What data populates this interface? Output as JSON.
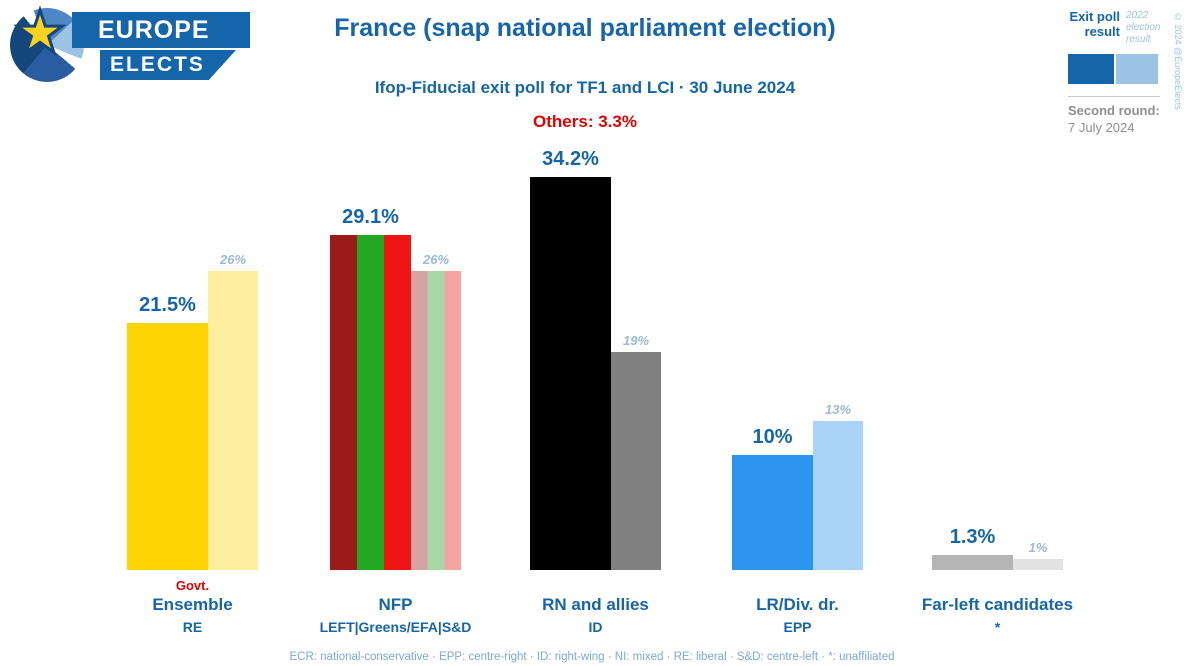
{
  "logo": {
    "line1": "EUROPE",
    "line2": "ELECTS",
    "star": "★"
  },
  "header": {
    "title": "France (snap national parliament election)",
    "subtitle": "Ifop-Fiducial exit poll for TF1 and LCI · 30 June 2024",
    "others_label": "Others: 3.3%"
  },
  "legend": {
    "exit_poll_label": "Exit poll result",
    "prev_label": "2022 election result",
    "exit_color": "#1565ab",
    "prev_color": "#9cc3e4",
    "second_round_label": "Second round:",
    "second_round_date": "7 July 2024",
    "copyright": "© 2024 @EuropeElects"
  },
  "footer": {
    "text": "ECR: national-conservative · EPP: centre-right · ID: right-wing · NI: mixed · RE: liberal · S&D: centre-left · *: unaffiliated"
  },
  "chart_data": {
    "type": "bar",
    "title": "France (snap national parliament election)",
    "subtitle": "Ifop-Fiducial exit poll for TF1 and LCI · 30 June 2024",
    "others_pct": 3.3,
    "unit": "%",
    "ylim": [
      0,
      40
    ],
    "grid": false,
    "legend_position": "top-right",
    "categories": [
      "Ensemble",
      "NFP",
      "RN and allies",
      "LR/Div. dr.",
      "Far-left candidates"
    ],
    "groups": [
      "RE",
      "LEFT|Greens/EFA|S&D",
      "ID",
      "EPP",
      "*"
    ],
    "series": [
      {
        "name": "Exit poll result",
        "values": [
          21.5,
          29.1,
          34.2,
          10,
          1.3
        ]
      },
      {
        "name": "2022 election result",
        "values": [
          26,
          26,
          19,
          13,
          1
        ]
      }
    ],
    "bars": [
      {
        "party": "Ensemble",
        "group": "RE",
        "tag": "Govt.",
        "value": 21.5,
        "value_label": "21.5%",
        "prev": 26,
        "prev_label": "26%",
        "colors": [
          "#ffd500"
        ],
        "prev_colors": [
          "#fcee9e"
        ]
      },
      {
        "party": "NFP",
        "group": "LEFT|Greens/EFA|S&D",
        "tag": "",
        "value": 29.1,
        "value_label": "29.1%",
        "prev": 26,
        "prev_label": "26%",
        "colors": [
          "#9b1b1b",
          "#22a822",
          "#f01414"
        ],
        "prev_colors": [
          "#d6a3a3",
          "#a6d8a6",
          "#f5a3a3"
        ]
      },
      {
        "party": "RN and allies",
        "group": "ID",
        "tag": "",
        "value": 34.2,
        "value_label": "34.2%",
        "prev": 19,
        "prev_label": "19%",
        "colors": [
          "#000000"
        ],
        "prev_colors": [
          "#808080"
        ]
      },
      {
        "party": "LR/Div. dr.",
        "group": "EPP",
        "tag": "",
        "value": 10,
        "value_label": "10%",
        "prev": 13,
        "prev_label": "13%",
        "colors": [
          "#2b95f0"
        ],
        "prev_colors": [
          "#a9d3f7"
        ]
      },
      {
        "party": "Far-left candidates",
        "group": "*",
        "tag": "",
        "value": 1.3,
        "value_label": "1.3%",
        "prev": 1,
        "prev_label": "1%",
        "colors": [
          "#b5b5b5"
        ],
        "prev_colors": [
          "#e2e2e2"
        ]
      }
    ]
  }
}
